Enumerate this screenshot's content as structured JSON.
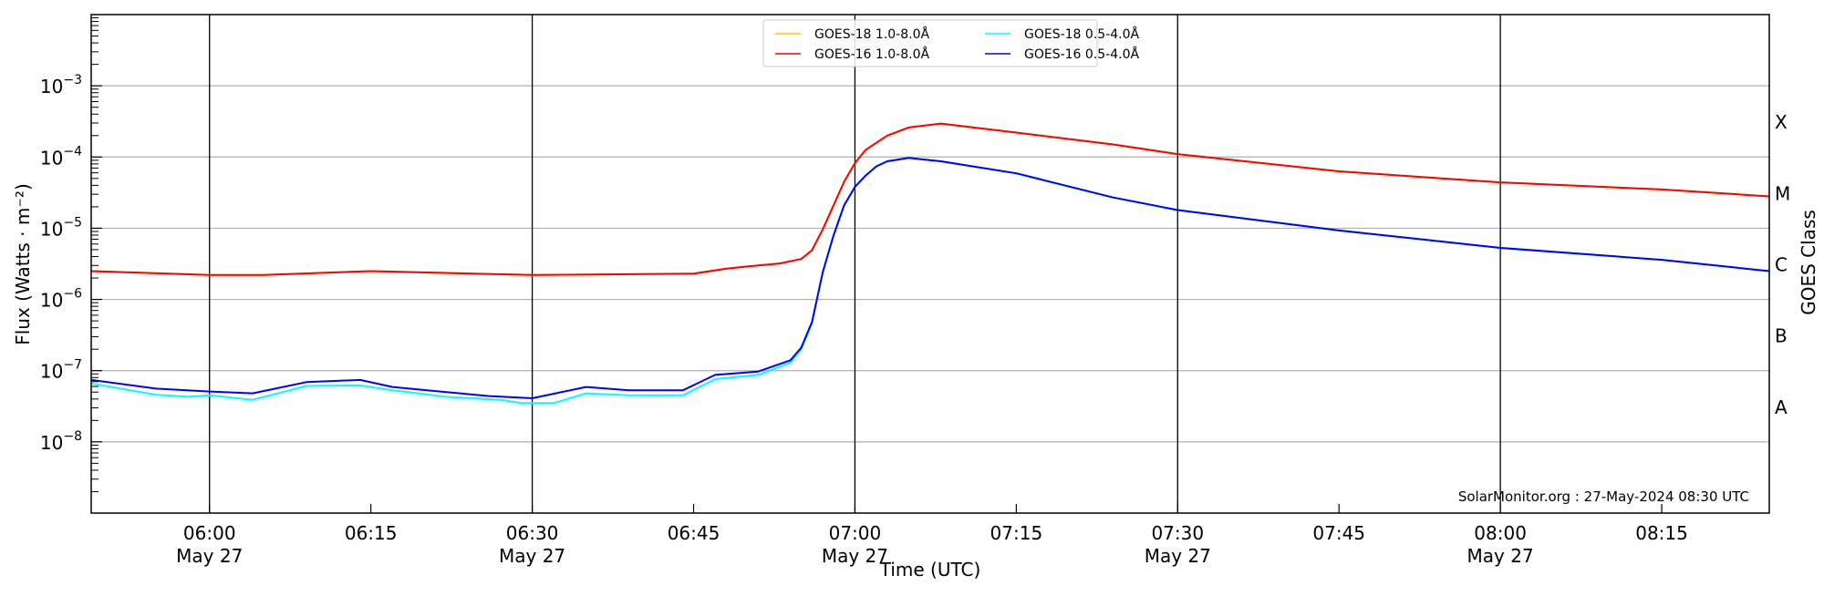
{
  "chart_data": {
    "type": "line",
    "title": "",
    "xlabel": "Time (UTC)",
    "ylabel": "Flux (Watts · m⁻²)",
    "y2label": "GOES Class",
    "yscale": "log",
    "ylim": [
      1e-09,
      0.01
    ],
    "xlim": [
      "05:49",
      "08:25"
    ],
    "grid": "horizontal at decades, vertical black lines at half hours",
    "legend_placement": "top-center",
    "y_ticks": [
      {
        "value": 1e-08,
        "base": "10",
        "exp": "−8"
      },
      {
        "value": 1e-07,
        "base": "10",
        "exp": "−7"
      },
      {
        "value": 1e-06,
        "base": "10",
        "exp": "−6"
      },
      {
        "value": 1e-05,
        "base": "10",
        "exp": "−5"
      },
      {
        "value": 0.0001,
        "base": "10",
        "exp": "−4"
      },
      {
        "value": 0.001,
        "base": "10",
        "exp": "−3"
      }
    ],
    "x_ticks": [
      {
        "time": "06:00",
        "label": "06:00",
        "sub": "May 27"
      },
      {
        "time": "06:15",
        "label": "06:15",
        "sub": ""
      },
      {
        "time": "06:30",
        "label": "06:30",
        "sub": "May 27"
      },
      {
        "time": "06:45",
        "label": "06:45",
        "sub": ""
      },
      {
        "time": "07:00",
        "label": "07:00",
        "sub": "May 27"
      },
      {
        "time": "07:15",
        "label": "07:15",
        "sub": ""
      },
      {
        "time": "07:30",
        "label": "07:30",
        "sub": "May 27"
      },
      {
        "time": "07:45",
        "label": "07:45",
        "sub": ""
      },
      {
        "time": "08:00",
        "label": "08:00",
        "sub": "May 27"
      },
      {
        "time": "08:15",
        "label": "08:15",
        "sub": ""
      }
    ],
    "vlines": [
      "06:00",
      "06:30",
      "07:00",
      "07:30",
      "08:00"
    ],
    "goes_classes": [
      {
        "label": "X",
        "value": 0.000316
      },
      {
        "label": "M",
        "value": 3.16e-05
      },
      {
        "label": "C",
        "value": 3.16e-06
      },
      {
        "label": "B",
        "value": 3.16e-07
      },
      {
        "label": "A",
        "value": 3.16e-08
      }
    ],
    "annotation": "SolarMonitor.org : 27-May-2024 08:30 UTC",
    "series": [
      {
        "name": "GOES-18 1.0-8.0Å",
        "color": "#ffc800",
        "x": [
          "05:49",
          "06:00",
          "06:05",
          "06:15",
          "06:30",
          "06:45",
          "06:48",
          "06:50",
          "06:53",
          "06:55",
          "06:56",
          "06:57",
          "06:59",
          "07:00",
          "07:01",
          "07:03",
          "07:05",
          "07:08",
          "07:15",
          "07:24",
          "07:30",
          "07:45",
          "08:00",
          "08:15",
          "08:25"
        ],
        "y": [
          2.5e-06,
          2.2e-06,
          2.2e-06,
          2.5e-06,
          2.2e-06,
          2.3e-06,
          2.7e-06,
          2.9e-06,
          3.2e-06,
          3.7e-06,
          4.9e-06,
          9.6e-06,
          4.5e-05,
          8.2e-05,
          0.000126,
          0.0002,
          0.00026,
          0.000295,
          0.00022,
          0.00015,
          0.00011,
          6.3e-05,
          4.4e-05,
          3.5e-05,
          2.8e-05
        ]
      },
      {
        "name": "GOES-16 1.0-8.0Å",
        "color": "#ff0000",
        "x": [
          "05:49",
          "06:00",
          "06:05",
          "06:15",
          "06:30",
          "06:45",
          "06:48",
          "06:50",
          "06:53",
          "06:55",
          "06:56",
          "06:57",
          "06:59",
          "07:00",
          "07:01",
          "07:03",
          "07:05",
          "07:08",
          "07:15",
          "07:24",
          "07:30",
          "07:45",
          "08:00",
          "08:15",
          "08:25"
        ],
        "y": [
          2.5e-06,
          2.2e-06,
          2.2e-06,
          2.5e-06,
          2.2e-06,
          2.3e-06,
          2.7e-06,
          2.9e-06,
          3.2e-06,
          3.7e-06,
          4.9e-06,
          9.6e-06,
          4.5e-05,
          8.2e-05,
          0.000126,
          0.0002,
          0.00026,
          0.000295,
          0.00022,
          0.00015,
          0.00011,
          6.3e-05,
          4.4e-05,
          3.5e-05,
          2.8e-05
        ]
      },
      {
        "name": "GOES-18 0.5-4.0Å",
        "color": "#00ffff",
        "x": [
          "05:49",
          "05:55",
          "05:58",
          "06:00",
          "06:04",
          "06:09",
          "06:14",
          "06:17",
          "06:22",
          "06:27",
          "06:29",
          "06:32",
          "06:35",
          "06:39",
          "06:44",
          "06:47",
          "06:51",
          "06:54",
          "06:55",
          "06:56",
          "06:57",
          "06:58",
          "06:59",
          "07:00",
          "07:01",
          "07:02",
          "07:03",
          "07:05",
          "07:08",
          "07:15",
          "07:24",
          "07:30",
          "07:45",
          "08:00",
          "08:15",
          "08:25"
        ],
        "y": [
          6.6e-08,
          4.6e-08,
          4.3e-08,
          4.5e-08,
          3.9e-08,
          6.1e-08,
          6.2e-08,
          5.3e-08,
          4.3e-08,
          3.9e-08,
          3.5e-08,
          3.5e-08,
          4.8e-08,
          4.5e-08,
          4.5e-08,
          7.6e-08,
          8.7e-08,
          1.3e-07,
          2e-07,
          4.6e-07,
          2.4e-06,
          7.8e-06,
          2.1e-05,
          3.8e-05,
          5.5e-05,
          7.4e-05,
          8.7e-05,
          9.7e-05,
          8.7e-05,
          5.9e-05,
          2.7e-05,
          1.8e-05,
          9.3e-06,
          5.3e-06,
          3.6e-06,
          2.5e-06
        ]
      },
      {
        "name": "GOES-16 0.5-4.0Å",
        "color": "#0000ff",
        "x": [
          "05:49",
          "05:55",
          "06:00",
          "06:04",
          "06:09",
          "06:14",
          "06:17",
          "06:22",
          "06:26",
          "06:30",
          "06:35",
          "06:39",
          "06:44",
          "06:47",
          "06:51",
          "06:54",
          "06:55",
          "06:56",
          "06:57",
          "06:58",
          "06:59",
          "07:00",
          "07:01",
          "07:02",
          "07:03",
          "07:05",
          "07:08",
          "07:15",
          "07:24",
          "07:30",
          "07:45",
          "08:00",
          "08:15",
          "08:25"
        ],
        "y": [
          7.4e-08,
          5.6e-08,
          5.1e-08,
          4.8e-08,
          6.9e-08,
          7.4e-08,
          5.9e-08,
          5e-08,
          4.4e-08,
          4.1e-08,
          5.9e-08,
          5.3e-08,
          5.3e-08,
          8.7e-08,
          9.7e-08,
          1.4e-07,
          2.1e-07,
          4.8e-07,
          2.4e-06,
          7.8e-06,
          2.1e-05,
          3.8e-05,
          5.5e-05,
          7.4e-05,
          8.7e-05,
          9.7e-05,
          8.7e-05,
          5.9e-05,
          2.7e-05,
          1.8e-05,
          9.3e-06,
          5.3e-06,
          3.6e-06,
          2.5e-06
        ]
      }
    ]
  }
}
